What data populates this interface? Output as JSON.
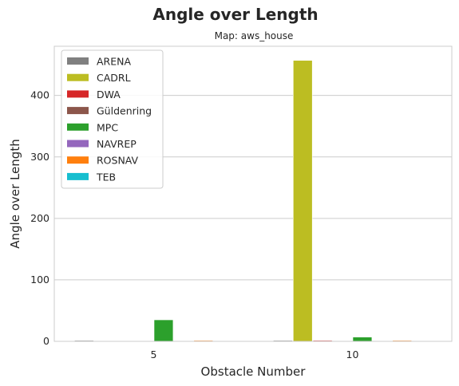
{
  "chart_data": {
    "type": "bar",
    "title": "Angle over Length",
    "subtitle": "Map: aws_house",
    "xlabel": "Obstacle Number",
    "ylabel": "Angle over Length",
    "categories": [
      "5",
      "10"
    ],
    "ylim": [
      0,
      480
    ],
    "yticks": [
      0,
      100,
      200,
      300,
      400
    ],
    "grid": true,
    "legend_position": "top-left",
    "series": [
      {
        "name": "ARENA",
        "color": "#808080",
        "values": [
          1.5,
          1.5
        ]
      },
      {
        "name": "CADRL",
        "color": "#bcbd22",
        "values": [
          0,
          457
        ]
      },
      {
        "name": "DWA",
        "color": "#d62728",
        "values": [
          0,
          1.5
        ]
      },
      {
        "name": "Güldenring",
        "color": "#8c564b",
        "values": [
          0,
          0
        ]
      },
      {
        "name": "MPC",
        "color": "#2ca02c",
        "values": [
          35,
          7
        ]
      },
      {
        "name": "NAVREP",
        "color": "#9467bd",
        "values": [
          0,
          0
        ]
      },
      {
        "name": "ROSNAV",
        "color": "#ff7f0e",
        "values": [
          1.5,
          1.5
        ]
      },
      {
        "name": "TEB",
        "color": "#17becf",
        "values": [
          0,
          0
        ]
      }
    ]
  }
}
